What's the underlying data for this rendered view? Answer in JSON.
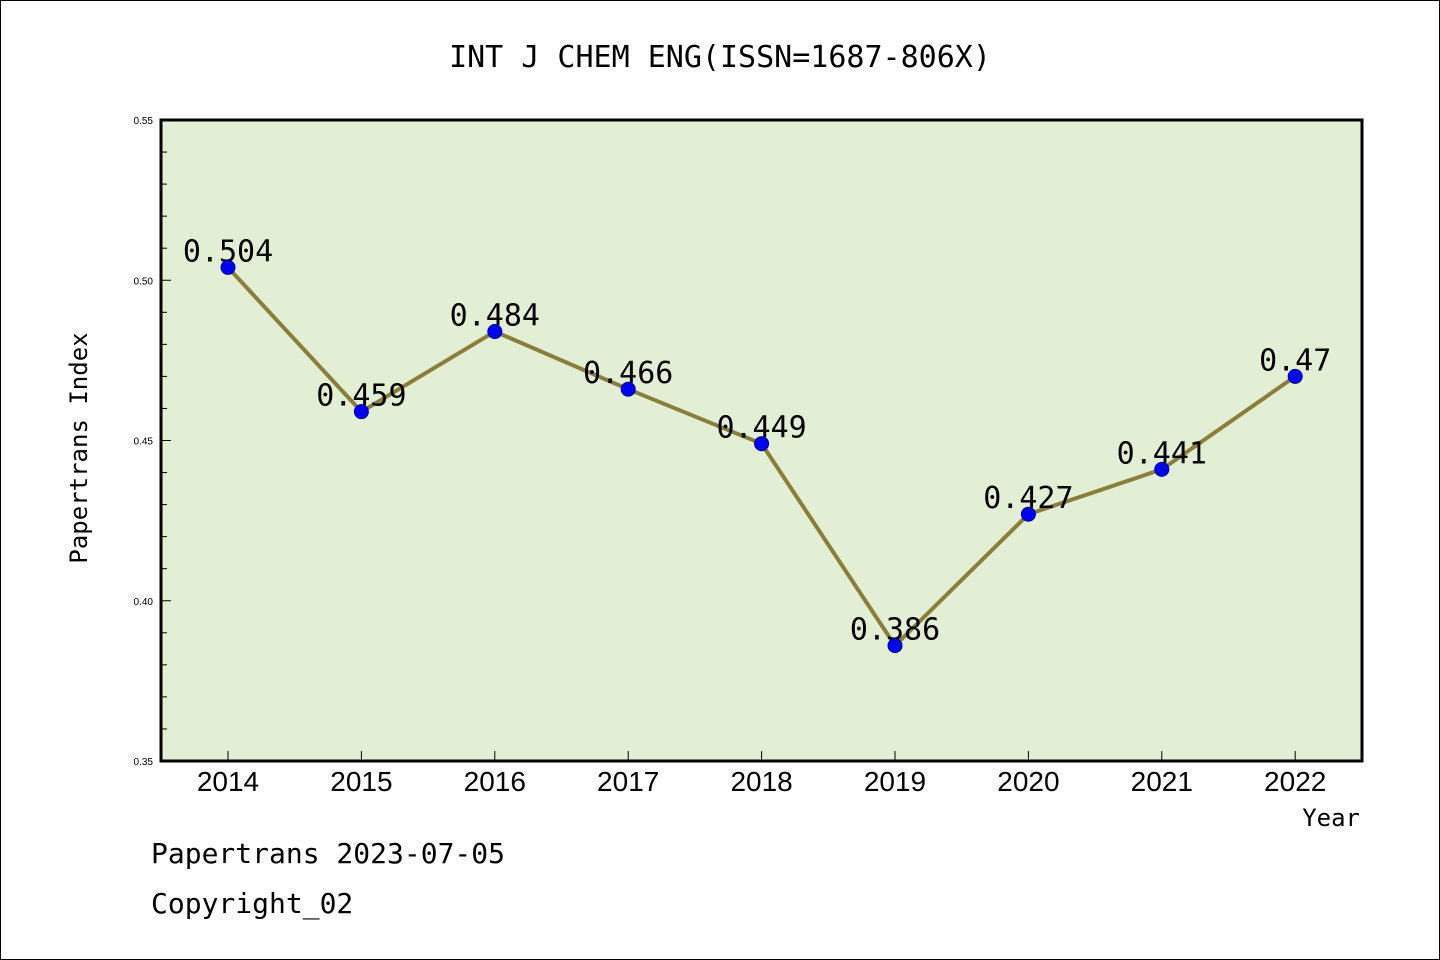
{
  "chart_data": {
    "type": "line",
    "title": "INT J CHEM ENG(ISSN=1687-806X)",
    "xlabel": "Year",
    "ylabel": "Papertrans Index",
    "categories": [
      "2014",
      "2015",
      "2016",
      "2017",
      "2018",
      "2019",
      "2020",
      "2021",
      "2022"
    ],
    "series": [
      {
        "values": [
          0.504,
          0.459,
          0.484,
          0.466,
          0.449,
          0.386,
          0.427,
          0.441,
          0.47
        ],
        "data_labels": [
          "0.504",
          "0.459",
          "0.484",
          "0.466",
          "0.449",
          "0.386",
          "0.427",
          "0.441",
          "0.47"
        ]
      }
    ],
    "ylim": [
      0.35,
      0.55
    ],
    "yticks": [
      "0.35",
      "0.40",
      "0.45",
      "0.50",
      "0.55"
    ],
    "grid": false,
    "colors": {
      "plot_background": "#e2efd5",
      "line": "#8b7d3a",
      "marker": "#0000ff",
      "axis": "#000000"
    }
  },
  "footer": {
    "line1": "Papertrans 2023-07-05",
    "line2": "Copyright_02"
  }
}
